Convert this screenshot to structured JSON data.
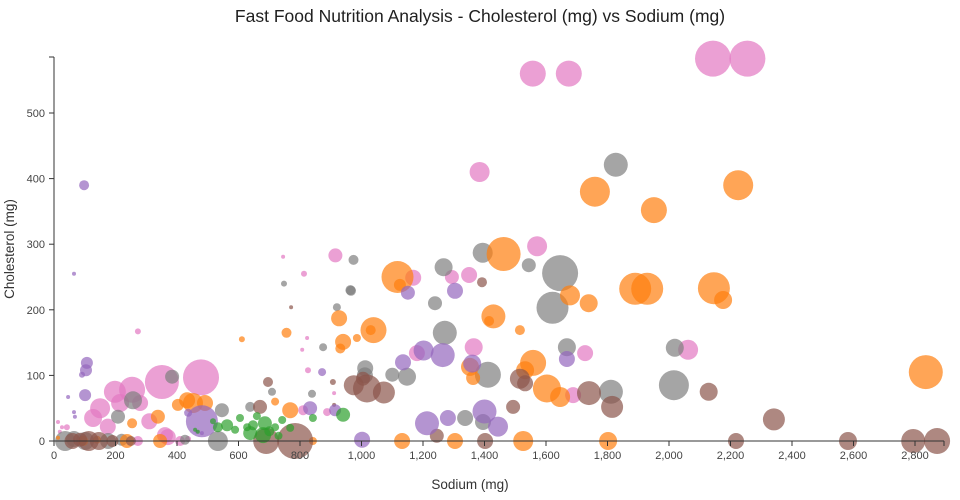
{
  "title": "Fast Food Nutrition Analysis - Cholesterol (mg) vs Sodium (mg)",
  "chart_data": {
    "type": "scatter",
    "subtype": "bubble",
    "title": "Fast Food Nutrition Analysis - Cholesterol (mg) vs Sodium (mg)",
    "xlabel": "Sodium (mg)",
    "ylabel": "Cholesterol (mg)",
    "xlim": [
      0,
      2950
    ],
    "ylim": [
      0,
      590
    ],
    "x_ticks": [
      0,
      200,
      400,
      600,
      800,
      1000,
      1200,
      1400,
      1600,
      1800,
      2000,
      2200,
      2400,
      2600,
      2800
    ],
    "y_ticks": [
      0,
      100,
      200,
      300,
      400,
      500
    ],
    "grid": false,
    "legend_position": "none",
    "marker_opacity": 0.7,
    "series": [
      {
        "name": "pink",
        "color": "#e377c2",
        "points": [
          [
            1557,
            560,
            13
          ],
          [
            1674,
            560,
            13
          ],
          [
            2143,
            583,
            18
          ],
          [
            2255,
            583,
            18
          ],
          [
            1384,
            410,
            10
          ],
          [
            1571,
            297,
            10
          ],
          [
            915,
            283,
            7
          ],
          [
            745,
            281,
            2
          ],
          [
            813,
            255,
            3
          ],
          [
            1350,
            253,
            8
          ],
          [
            1294,
            250,
            7
          ],
          [
            1168,
            249,
            8
          ],
          [
            1727,
            134,
            8
          ],
          [
            2062,
            139,
            10
          ],
          [
            1180,
            134,
            8
          ],
          [
            1365,
            143,
            9
          ],
          [
            826,
            108,
            3
          ],
          [
            888,
            44,
            4
          ],
          [
            810,
            47,
            5
          ],
          [
            1688,
            70,
            8
          ],
          [
            911,
            73,
            2
          ],
          [
            807,
            139,
            2
          ],
          [
            823,
            157,
            2
          ],
          [
            273,
            167,
            3
          ],
          [
            198,
            75,
            11
          ],
          [
            254,
            78,
            13
          ],
          [
            351,
            90,
            17
          ],
          [
            478,
            97,
            18
          ],
          [
            150,
            50,
            10
          ],
          [
            127,
            35,
            9
          ],
          [
            175,
            22,
            8
          ],
          [
            215,
            58,
            9
          ],
          [
            280,
            58,
            8
          ],
          [
            310,
            30,
            8
          ],
          [
            370,
            6,
            8
          ],
          [
            273,
            0,
            5
          ],
          [
            436,
            3,
            3
          ],
          [
            361,
            9,
            8
          ],
          [
            410,
            0,
            5
          ],
          [
            42,
            21,
            3
          ],
          [
            13,
            29,
            2
          ],
          [
            26,
            21,
            2
          ],
          [
            19,
            14,
            2
          ]
        ]
      },
      {
        "name": "gray",
        "color": "#7f7f7f",
        "points": [
          [
            974,
            276,
            5
          ],
          [
            964,
            230,
            5
          ],
          [
            1267,
            265,
            9
          ],
          [
            1394,
            287,
            10
          ],
          [
            1544,
            268,
            7
          ],
          [
            1646,
            256,
            18
          ],
          [
            1621,
            203,
            16
          ],
          [
            1827,
            421,
            12
          ],
          [
            2016,
            85,
            15
          ],
          [
            1811,
            75,
            12
          ],
          [
            2019,
            142,
            9
          ],
          [
            1668,
            143,
            9
          ],
          [
            920,
            204,
            4
          ],
          [
            966,
            229,
            5
          ],
          [
            748,
            240,
            3
          ],
          [
            1239,
            210,
            7
          ],
          [
            1271,
            165,
            12
          ],
          [
            1411,
            101,
            13
          ],
          [
            1337,
            35,
            8
          ],
          [
            1395,
            29,
            8
          ],
          [
            1012,
            111,
            8
          ],
          [
            1100,
            101,
            7
          ],
          [
            1148,
            98,
            9
          ],
          [
            1011,
            100,
            8
          ],
          [
            546,
            47,
            7
          ],
          [
            638,
            52,
            5
          ],
          [
            533,
            0,
            10
          ],
          [
            875,
            143,
            4
          ],
          [
            839,
            72,
            4
          ],
          [
            709,
            75,
            4
          ],
          [
            257,
            62,
            9
          ],
          [
            208,
            37,
            7
          ],
          [
            384,
            98,
            7
          ],
          [
            36,
            0,
            10
          ],
          [
            101,
            0,
            9
          ],
          [
            176,
            0,
            8
          ],
          [
            65,
            3,
            8
          ],
          [
            220,
            2,
            6
          ],
          [
            426,
            2,
            5
          ]
        ]
      },
      {
        "name": "orange",
        "color": "#ff7f0e",
        "points": [
          [
            1117,
            250,
            16
          ],
          [
            1125,
            238,
            6
          ],
          [
            1462,
            285,
            17
          ],
          [
            1759,
            380,
            15
          ],
          [
            1951,
            352,
            13
          ],
          [
            2225,
            390,
            15
          ],
          [
            1890,
            232,
            16
          ],
          [
            1929,
            232,
            16
          ],
          [
            2146,
            233,
            16
          ],
          [
            2176,
            215,
            9
          ],
          [
            2835,
            105,
            17
          ],
          [
            1678,
            222,
            10
          ],
          [
            1739,
            210,
            9
          ],
          [
            1429,
            190,
            12
          ],
          [
            1415,
            183,
            5
          ],
          [
            1558,
            119,
            13
          ],
          [
            1532,
            108,
            9
          ],
          [
            1603,
            80,
            14
          ],
          [
            1646,
            67,
            10
          ],
          [
            1515,
            169,
            5
          ],
          [
            1353,
            113,
            9
          ],
          [
            1363,
            96,
            7
          ],
          [
            1304,
            0,
            8
          ],
          [
            1132,
            0,
            8
          ],
          [
            1526,
            0,
            10
          ],
          [
            1802,
            0,
            9
          ],
          [
            1039,
            169,
            13
          ],
          [
            1030,
            169,
            5
          ],
          [
            931,
            141,
            5
          ],
          [
            927,
            187,
            8
          ],
          [
            940,
            151,
            8
          ],
          [
            756,
            165,
            5
          ],
          [
            611,
            155,
            3
          ],
          [
            985,
            157,
            4
          ],
          [
            338,
            37,
            7
          ],
          [
            254,
            27,
            5
          ],
          [
            403,
            55,
            6
          ],
          [
            433,
            62,
            8
          ],
          [
            452,
            58,
            10
          ],
          [
            491,
            58,
            8
          ],
          [
            768,
            47,
            8
          ],
          [
            842,
            0,
            4
          ],
          [
            345,
            0,
            7
          ],
          [
            237,
            0,
            7
          ],
          [
            95,
            0,
            5
          ],
          [
            140,
            2,
            4
          ],
          [
            13,
            5,
            2
          ],
          [
            719,
            60,
            4
          ]
        ]
      },
      {
        "name": "brown",
        "color": "#8c564b",
        "points": [
          [
            975,
            85,
            10
          ],
          [
            1018,
            80,
            14
          ],
          [
            1073,
            74,
            11
          ],
          [
            1005,
            95,
            7
          ],
          [
            1392,
            242,
            5
          ],
          [
            771,
            204,
            2
          ],
          [
            1493,
            52,
            7
          ],
          [
            1515,
            95,
            10
          ],
          [
            1532,
            88,
            8
          ],
          [
            1740,
            73,
            12
          ],
          [
            1815,
            52,
            11
          ],
          [
            2129,
            75,
            9
          ],
          [
            2341,
            33,
            11
          ],
          [
            2218,
            0,
            8
          ],
          [
            2582,
            0,
            9
          ],
          [
            2794,
            0,
            12
          ],
          [
            2872,
            0,
            13
          ],
          [
            696,
            90,
            5
          ],
          [
            907,
            90,
            3
          ],
          [
            911,
            55,
            2
          ],
          [
            670,
            52,
            7
          ],
          [
            690,
            0,
            13
          ],
          [
            784,
            0,
            18
          ],
          [
            1402,
            0,
            8
          ],
          [
            1245,
            8,
            7
          ],
          [
            60,
            0,
            8
          ],
          [
            113,
            0,
            10
          ],
          [
            146,
            0,
            9
          ],
          [
            85,
            2,
            7
          ],
          [
            190,
            0,
            6
          ],
          [
            250,
            0,
            5
          ]
        ]
      },
      {
        "name": "purple",
        "color": "#9467bd",
        "points": [
          [
            98,
            390,
            5
          ],
          [
            65,
            255,
            2
          ],
          [
            107,
            119,
            6
          ],
          [
            104,
            108,
            6
          ],
          [
            91,
            101,
            3
          ],
          [
            101,
            70,
            6
          ],
          [
            46,
            67,
            2
          ],
          [
            65,
            44,
            2
          ],
          [
            68,
            37,
            2
          ],
          [
            481,
            30,
            16
          ],
          [
            1213,
            27,
            12
          ],
          [
            1281,
            35,
            8
          ],
          [
            1400,
            45,
            12
          ],
          [
            1444,
            22,
            10
          ],
          [
            1202,
            138,
            10
          ],
          [
            1264,
            131,
            12
          ],
          [
            1135,
            120,
            8
          ],
          [
            1360,
            118,
            9
          ],
          [
            1151,
            226,
            7
          ],
          [
            1304,
            229,
            8
          ],
          [
            1668,
            125,
            8
          ],
          [
            872,
            105,
            4
          ],
          [
            833,
            50,
            7
          ],
          [
            914,
            47,
            6
          ],
          [
            1002,
            2,
            8
          ],
          [
            436,
            43,
            4
          ],
          [
            465,
            14,
            2
          ],
          [
            481,
            12,
            2
          ]
        ]
      },
      {
        "name": "green",
        "color": "#2ca02c",
        "points": [
          [
            533,
            21,
            5
          ],
          [
            563,
            24,
            6
          ],
          [
            589,
            17,
            4
          ],
          [
            628,
            21,
            4
          ],
          [
            647,
            24,
            5
          ],
          [
            686,
            27,
            7
          ],
          [
            719,
            21,
            4
          ],
          [
            742,
            32,
            4
          ],
          [
            768,
            20,
            4
          ],
          [
            638,
            12,
            7
          ],
          [
            680,
            9,
            8
          ],
          [
            842,
            35,
            4
          ],
          [
            940,
            40,
            7
          ],
          [
            459,
            17,
            2
          ],
          [
            468,
            14,
            2
          ],
          [
            517,
            30,
            3
          ],
          [
            605,
            35,
            4
          ],
          [
            660,
            38,
            4
          ],
          [
            700,
            15,
            5
          ],
          [
            730,
            8,
            4
          ]
        ]
      }
    ]
  }
}
